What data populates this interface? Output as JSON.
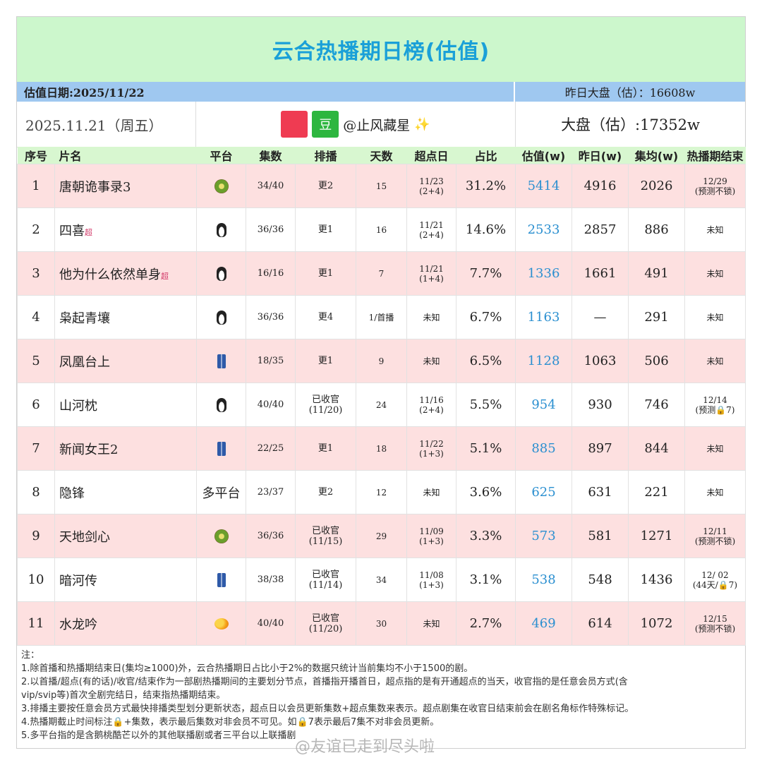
{
  "title": "云合热播期日榜(估值)",
  "estimate_date": "估值日期:2025/11/22",
  "yesterday_total": "昨日大盘（估）：16608w",
  "date_label": "2025.11.21（周五）",
  "author": {
    "badge_text": "豆",
    "handle": "@止风藏星",
    "sparkle": "✨"
  },
  "total_estimate": "大盘（估）:17352w",
  "headers": [
    "序号",
    "片名",
    "平台",
    "集数",
    "排播",
    "天数",
    "超点日",
    "占比",
    "估值(w)",
    "昨日(w)",
    "集均(w)",
    "热播期结束"
  ],
  "rows": [
    {
      "rank": "1",
      "name": "唐朝诡事录3",
      "badge": "",
      "platform": "kiwi-icon",
      "platform_text": "",
      "episodes": "34/40",
      "schedule": "更2",
      "schedule2": "",
      "days": "15",
      "super": "11/23",
      "super2": "(2+4)",
      "share": "31.2%",
      "estimate": "5414",
      "yesterday": "4916",
      "avg": "2026",
      "end": "12/29",
      "end2": "(预测不锁)"
    },
    {
      "rank": "2",
      "name": "四喜",
      "badge": "超",
      "platform": "penguin-icon",
      "platform_text": "",
      "episodes": "36/36",
      "schedule": "更1",
      "schedule2": "",
      "days": "16",
      "super": "11/21",
      "super2": "(2+4)",
      "share": "14.6%",
      "estimate": "2533",
      "yesterday": "2857",
      "avg": "886",
      "end": "未知",
      "end2": ""
    },
    {
      "rank": "3",
      "name": "他为什么依然单身",
      "badge": "超",
      "platform": "penguin-icon",
      "platform_text": "",
      "episodes": "16/16",
      "schedule": "更1",
      "schedule2": "",
      "days": "7",
      "super": "11/21",
      "super2": "(1+4)",
      "share": "7.7%",
      "estimate": "1336",
      "yesterday": "1661",
      "avg": "491",
      "end": "未知",
      "end2": ""
    },
    {
      "rank": "4",
      "name": "枭起青壤",
      "badge": "",
      "platform": "penguin-icon",
      "platform_text": "",
      "episodes": "36/36",
      "schedule": "更4",
      "schedule2": "",
      "days": "1/首播",
      "super": "未知",
      "super2": "",
      "share": "6.7%",
      "estimate": "1163",
      "yesterday": "—",
      "avg": "291",
      "end": "未知",
      "end2": ""
    },
    {
      "rank": "5",
      "name": "凤凰台上",
      "badge": "",
      "platform": "jeans-icon",
      "platform_text": "",
      "episodes": "18/35",
      "schedule": "更1",
      "schedule2": "",
      "days": "9",
      "super": "未知",
      "super2": "",
      "share": "6.5%",
      "estimate": "1128",
      "yesterday": "1063",
      "avg": "506",
      "end": "未知",
      "end2": ""
    },
    {
      "rank": "6",
      "name": "山河枕",
      "badge": "",
      "platform": "penguin-icon",
      "platform_text": "",
      "episodes": "40/40",
      "schedule": "已收官",
      "schedule2": "(11/20)",
      "days": "24",
      "super": "11/16",
      "super2": "(2+4)",
      "share": "5.5%",
      "estimate": "954",
      "yesterday": "930",
      "avg": "746",
      "end": "12/14",
      "end2": "(预测🔒7)"
    },
    {
      "rank": "7",
      "name": "新闻女王2",
      "badge": "",
      "platform": "jeans-icon",
      "platform_text": "",
      "episodes": "22/25",
      "schedule": "更1",
      "schedule2": "",
      "days": "18",
      "super": "11/22",
      "super2": "(1+3)",
      "share": "5.1%",
      "estimate": "885",
      "yesterday": "897",
      "avg": "844",
      "end": "未知",
      "end2": ""
    },
    {
      "rank": "8",
      "name": "隐锋",
      "badge": "",
      "platform": "",
      "platform_text": "多平台",
      "episodes": "23/37",
      "schedule": "更2",
      "schedule2": "",
      "days": "12",
      "super": "未知",
      "super2": "",
      "share": "3.6%",
      "estimate": "625",
      "yesterday": "631",
      "avg": "221",
      "end": "未知",
      "end2": ""
    },
    {
      "rank": "9",
      "name": "天地剑心",
      "badge": "",
      "platform": "kiwi-icon",
      "platform_text": "",
      "episodes": "36/36",
      "schedule": "已收官",
      "schedule2": "(11/15)",
      "days": "29",
      "super": "11/09",
      "super2": "(1+3)",
      "share": "3.3%",
      "estimate": "573",
      "yesterday": "581",
      "avg": "1271",
      "end": "12/11",
      "end2": "(预测不锁)"
    },
    {
      "rank": "10",
      "name": "暗河传",
      "badge": "",
      "platform": "jeans-icon",
      "platform_text": "",
      "episodes": "38/38",
      "schedule": "已收官",
      "schedule2": "(11/14)",
      "days": "34",
      "super": "11/08",
      "super2": "(1+3)",
      "share": "3.1%",
      "estimate": "538",
      "yesterday": "548",
      "avg": "1436",
      "end": "12/ 02",
      "end2": "(44天/🔒7)"
    },
    {
      "rank": "11",
      "name": "水龙吟",
      "badge": "",
      "platform": "mango-icon",
      "platform_text": "",
      "episodes": "40/40",
      "schedule": "已收官",
      "schedule2": "(11/20)",
      "days": "30",
      "super": "未知",
      "super2": "",
      "share": "2.7%",
      "estimate": "469",
      "yesterday": "614",
      "avg": "1072",
      "end": "12/15",
      "end2": "(预测不锁)"
    }
  ],
  "notes": [
    "注：",
    "1.除首播和热播期结束日(集均≥1000)外，云合热播期日占比小于2%的数据只统计当前集均不小于1500的剧。",
    "2.以首播/超点(有的话)/收官/结束作为一部剧热播期间的主要划分节点，首播指开播首日，超点指的是有开通超点的当天，收官指的是任意会员方式(含",
    "vip/svip等)首次全剧完结日，结束指热播期结束。",
    "3.排播主要按任意会员方式最快排播类型划分更新状态，超点日以会员更新集数+超点集数来表示。超点剧集在收官日结束前会在剧名角标作特殊标记。",
    "4.热播期截止时间标注🔒+集数，表示最后集数对非会员不可见。如🔒7表示最后7集不对非会员更新。",
    "5.多平台指的是含鹅桃酷芒以外的其他联播剧或者三平台以上联播剧"
  ],
  "watermark": "@友谊已走到尽头啦"
}
